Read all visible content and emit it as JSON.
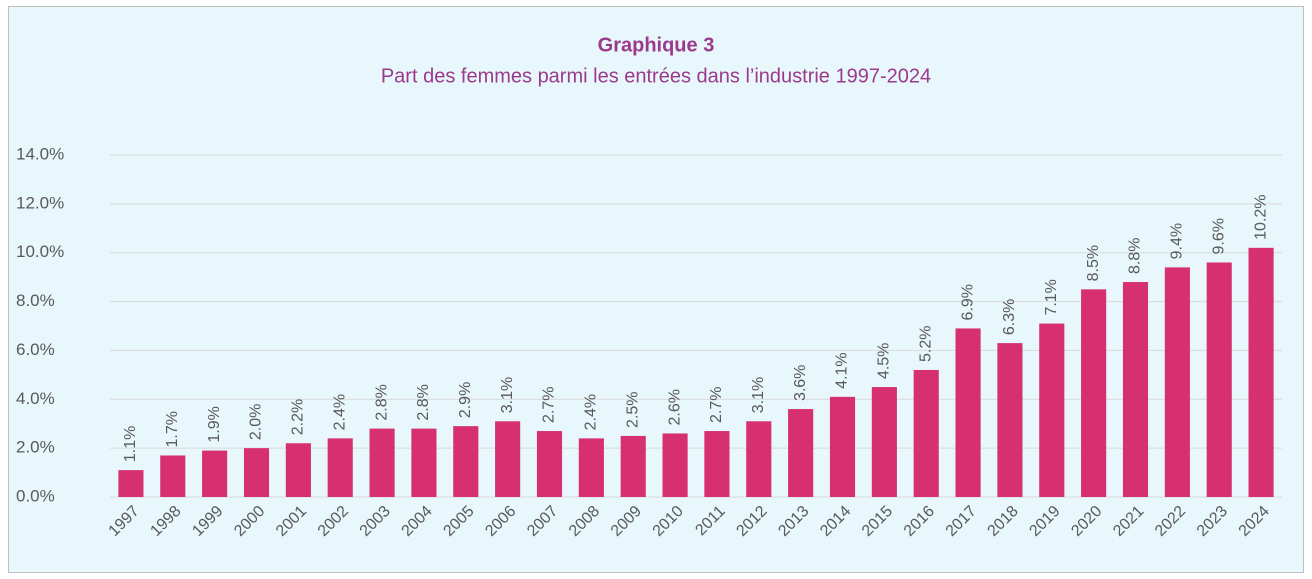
{
  "chart_data": {
    "type": "bar",
    "title": "Graphique 3",
    "subtitle": "Part des femmes parmi les entrées dans l’industrie 1997-2024",
    "categories": [
      "1997",
      "1998",
      "1999",
      "2000",
      "2001",
      "2002",
      "2003",
      "2004",
      "2005",
      "2006",
      "2007",
      "2008",
      "2009",
      "2010",
      "2011",
      "2012",
      "2013",
      "2014",
      "2015",
      "2016",
      "2017",
      "2018",
      "2019",
      "2020",
      "2021",
      "2022",
      "2023",
      "2024"
    ],
    "values": [
      1.1,
      1.7,
      1.9,
      2.0,
      2.2,
      2.4,
      2.8,
      2.8,
      2.9,
      3.1,
      2.7,
      2.4,
      2.5,
      2.6,
      2.7,
      3.1,
      3.6,
      4.1,
      4.5,
      5.2,
      6.9,
      6.3,
      7.1,
      8.5,
      8.8,
      9.4,
      9.6,
      10.2
    ],
    "value_labels": [
      "1.1%",
      "1.7%",
      "1.9%",
      "2.0%",
      "2.2%",
      "2.4%",
      "2.8%",
      "2.8%",
      "2.9%",
      "3.1%",
      "2.7%",
      "2.4%",
      "2.5%",
      "2.6%",
      "2.7%",
      "3.1%",
      "3.6%",
      "4.1%",
      "4.5%",
      "5.2%",
      "6.9%",
      "6.3%",
      "7.1%",
      "8.5%",
      "8.8%",
      "9.4%",
      "9.6%",
      "10.2%"
    ],
    "color": "#d6306f",
    "ylim": [
      0,
      14
    ],
    "yticks": [
      {
        "value": 0,
        "label": "0.0%"
      },
      {
        "value": 2,
        "label": "2.0%"
      },
      {
        "value": 4,
        "label": "4.0%"
      },
      {
        "value": 6,
        "label": "6.0%"
      },
      {
        "value": 8,
        "label": "8.0%"
      },
      {
        "value": 10,
        "label": "10.0%"
      },
      {
        "value": 12,
        "label": "12.0%"
      },
      {
        "value": 14,
        "label": "14.0%"
      }
    ],
    "grid": true
  }
}
